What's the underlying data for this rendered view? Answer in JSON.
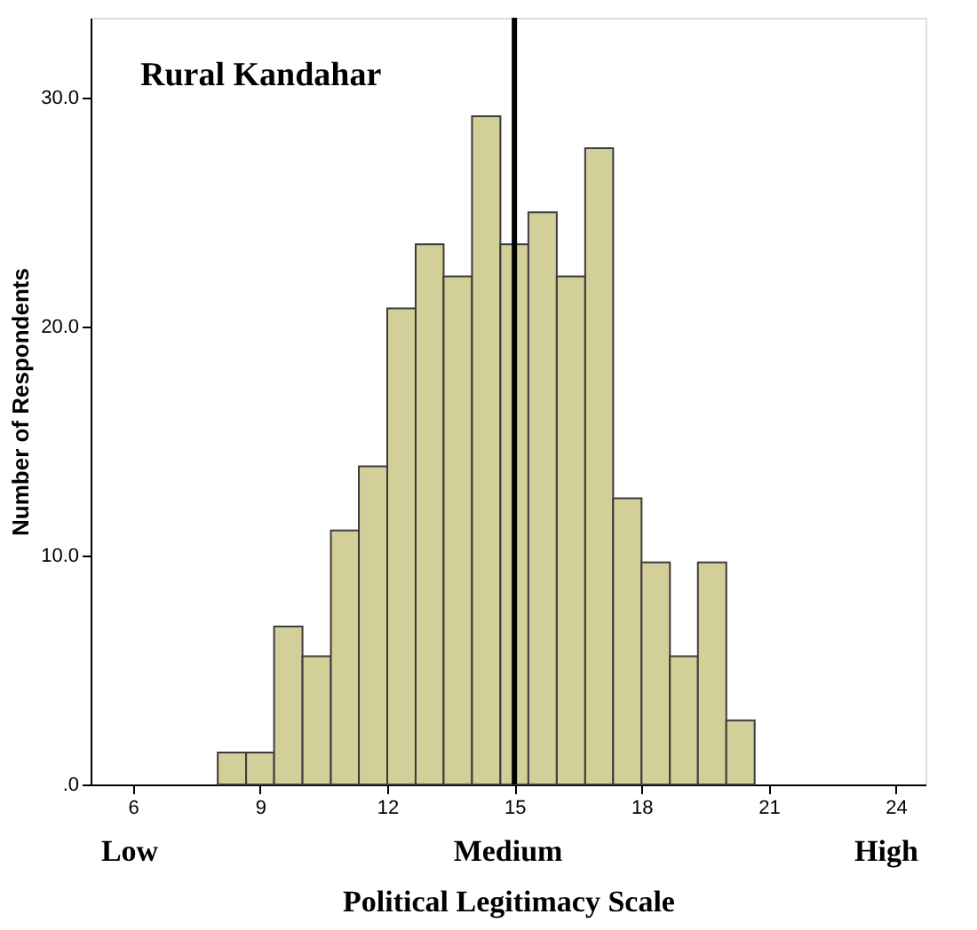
{
  "chart_data": {
    "type": "histogram",
    "title": "Rural Kandahar",
    "bins": [
      8,
      8.67,
      9.33,
      10,
      10.67,
      11.33,
      12,
      12.67,
      13.33,
      14,
      14.67,
      15.33,
      16,
      16.67,
      17.33,
      18,
      18.67,
      19.33,
      20,
      20.67
    ],
    "values": [
      1.4,
      1.4,
      6.9,
      5.6,
      11.1,
      13.9,
      20.8,
      23.6,
      22.2,
      29.2,
      23.6,
      25.0,
      22.2,
      27.8,
      12.5,
      9.7,
      5.6,
      9.7,
      2.8
    ],
    "color": "#d3cf98",
    "xlabel": "Political Legitimacy Scale",
    "ylabel": "Number of Respondents",
    "xlim": [
      5,
      24.7
    ],
    "xticks": [
      6,
      9,
      12,
      15,
      18,
      21,
      24
    ],
    "ylim": [
      0,
      33.5
    ],
    "yticks": [
      {
        "value": 0,
        "label": ".0"
      },
      {
        "value": 10,
        "label": "10.0"
      },
      {
        "value": 20,
        "label": "20.0"
      },
      {
        "value": 30,
        "label": "30.0"
      }
    ],
    "ref_lines": [
      {
        "axis": "x",
        "value": 15,
        "color": "#000000"
      }
    ],
    "annotations": [
      "Low",
      "Medium",
      "High"
    ],
    "grid": false
  }
}
